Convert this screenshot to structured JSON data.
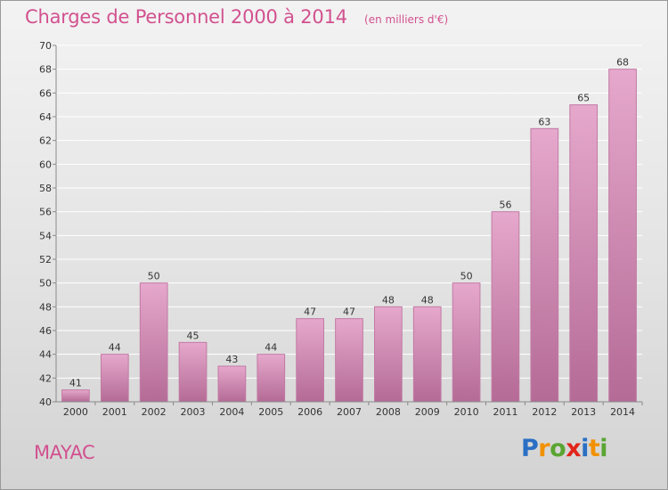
{
  "title": "Charges de Personnel 2000 à 2014",
  "subtitle": "(en milliers d'€)",
  "commune": "MAYAC",
  "logo": {
    "text": "Proxiti",
    "letter_colors": [
      "#2a6fc4",
      "#f29100",
      "#5aa532",
      "#e2251a",
      "#2a6fc4",
      "#f29100",
      "#5aa532"
    ]
  },
  "colors": {
    "title": "#d2518f",
    "bar_top": "#e6a8cc",
    "bar_bottom": "#b46b96",
    "bar_stroke": "#c27aa4",
    "grid": "#ffffff",
    "axis_text": "#333333"
  },
  "chart_data": {
    "type": "bar",
    "title": "Charges de Personnel 2000 à 2014",
    "subtitle": "(en milliers d'€)",
    "categories": [
      "2000",
      "2001",
      "2002",
      "2003",
      "2004",
      "2005",
      "2006",
      "2007",
      "2008",
      "2009",
      "2010",
      "2011",
      "2012",
      "2013",
      "2014"
    ],
    "values": [
      41,
      44,
      50,
      45,
      43,
      44,
      47,
      47,
      48,
      48,
      50,
      56,
      63,
      65,
      68
    ],
    "ylim": [
      40,
      70
    ],
    "yticks": [
      40,
      42,
      44,
      46,
      48,
      50,
      52,
      54,
      56,
      58,
      60,
      62,
      64,
      66,
      68,
      70
    ],
    "grid": true,
    "data_labels": true,
    "xlabel": "",
    "ylabel": ""
  }
}
